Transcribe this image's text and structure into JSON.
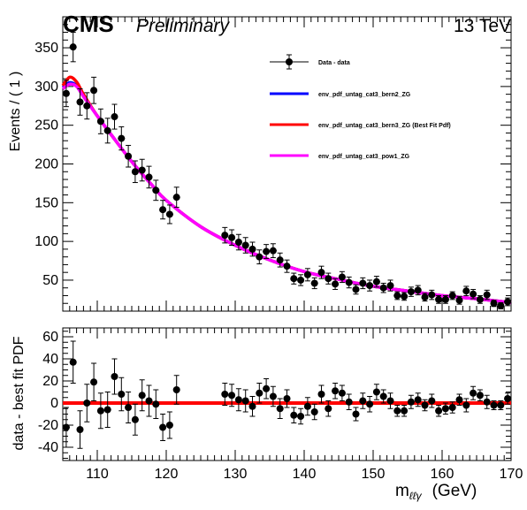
{
  "header": {
    "experiment": "CMS",
    "status": "Preliminary",
    "energy": "13 TeV"
  },
  "chart_data": [
    {
      "type": "scatter",
      "panel": "top",
      "ylabel": "Events / ( 1 )",
      "xlim": [
        105,
        170
      ],
      "ylim": [
        10,
        390
      ],
      "xticks": [
        "110",
        "120",
        "130",
        "140",
        "150",
        "160",
        "170"
      ],
      "yticks": [
        50,
        100,
        150,
        200,
        250,
        300,
        350
      ],
      "legend_position": "top-right",
      "series": [
        {
          "name": "Data - data",
          "kind": "points",
          "color": "#000000",
          "x": [
            105.5,
            106.5,
            107.5,
            108.5,
            109.5,
            110.5,
            111.5,
            112.5,
            113.5,
            114.5,
            115.5,
            116.5,
            117.5,
            118.5,
            119.5,
            120.5,
            121.5,
            128.5,
            129.5,
            130.5,
            131.5,
            132.5,
            133.5,
            134.5,
            135.5,
            136.5,
            137.5,
            138.5,
            139.5,
            140.5,
            141.5,
            142.5,
            143.5,
            144.5,
            145.5,
            146.5,
            147.5,
            148.5,
            149.5,
            150.5,
            151.5,
            152.5,
            153.5,
            154.5,
            155.5,
            156.5,
            157.5,
            158.5,
            159.5,
            160.5,
            161.5,
            162.5,
            163.5,
            164.5,
            165.5,
            166.5,
            167.5,
            168.5,
            169.5
          ],
          "y": [
            291,
            351,
            280,
            275,
            295,
            255,
            243,
            261,
            233,
            210,
            190,
            192,
            183,
            166,
            141,
            135,
            157,
            108,
            105,
            99,
            95,
            90,
            80,
            87,
            88,
            76,
            68,
            52,
            50,
            57,
            46,
            60,
            52,
            45,
            54,
            47,
            38,
            46,
            43,
            48,
            40,
            43,
            30,
            29,
            35,
            37,
            28,
            31,
            25,
            25,
            30,
            24,
            36,
            32,
            25,
            31,
            20,
            17,
            22
          ],
          "yerr": [
            17,
            19,
            17,
            17,
            17,
            16,
            16,
            16,
            15,
            14,
            14,
            14,
            14,
            13,
            12,
            12,
            13,
            10,
            10,
            10,
            10,
            9,
            9,
            9,
            9,
            9,
            8,
            7,
            7,
            8,
            7,
            8,
            7,
            7,
            7,
            7,
            6,
            7,
            7,
            7,
            6,
            7,
            5,
            5,
            6,
            6,
            5,
            6,
            5,
            5,
            5,
            5,
            6,
            6,
            5,
            6,
            4,
            4,
            5
          ]
        },
        {
          "name": "env_pdf_untag_cat3_bern2_ZG",
          "kind": "line",
          "color": "#0000ff",
          "x": [
            105,
            106,
            107,
            108,
            110,
            112,
            115,
            118,
            120,
            125,
            130,
            135,
            140,
            145,
            150,
            155,
            160,
            165,
            170
          ],
          "y": [
            299,
            305,
            301,
            288,
            262,
            238,
            203,
            172,
            153,
            119,
            95,
            76,
            61,
            51,
            42,
            36,
            30,
            26,
            21
          ]
        },
        {
          "name": "env_pdf_untag_cat3_bern3_ZG (Best Fit Pdf)",
          "kind": "line",
          "color": "#ff0000",
          "x": [
            105,
            106,
            107,
            108,
            110,
            112,
            115,
            118,
            120,
            125,
            130,
            135,
            140,
            145,
            150,
            155,
            160,
            165,
            170
          ],
          "y": [
            301,
            312,
            306,
            290,
            262,
            238,
            203,
            172,
            153,
            119,
            95,
            76,
            61,
            51,
            42,
            36,
            30,
            26,
            21
          ]
        },
        {
          "name": "env_pdf_untag_cat3_pow1_ZG",
          "kind": "line",
          "color": "#ff00ff",
          "x": [
            105,
            106,
            107,
            108,
            110,
            112,
            115,
            118,
            120,
            125,
            130,
            135,
            140,
            145,
            150,
            155,
            160,
            165,
            170
          ],
          "y": [
            297,
            303,
            300,
            287,
            262,
            238,
            203,
            172,
            153,
            119,
            95,
            76,
            61,
            51,
            42,
            36,
            30,
            26,
            21
          ]
        }
      ]
    },
    {
      "type": "scatter",
      "panel": "bottom",
      "ylabel": "data - best fit PDF",
      "xlabel": "m",
      "xlabel_subscript": "ℓℓγ",
      "xlabel_unit": "(GeV)",
      "xlim": [
        105,
        170
      ],
      "ylim": [
        -52,
        68
      ],
      "xticks": [
        "110",
        "120",
        "130",
        "140",
        "150",
        "160",
        "170"
      ],
      "yticks": [
        -40,
        -20,
        0,
        20,
        40,
        60
      ],
      "reference_line": {
        "y": 0,
        "color": "#ff0000"
      },
      "series": [
        {
          "name": "data - best fit PDF",
          "kind": "points",
          "color": "#000000",
          "x": [
            105.5,
            106.5,
            107.5,
            108.5,
            109.5,
            110.5,
            111.5,
            112.5,
            113.5,
            114.5,
            115.5,
            116.5,
            117.5,
            118.5,
            119.5,
            120.5,
            121.5,
            128.5,
            129.5,
            130.5,
            131.5,
            132.5,
            133.5,
            134.5,
            135.5,
            136.5,
            137.5,
            138.5,
            139.5,
            140.5,
            141.5,
            142.5,
            143.5,
            144.5,
            145.5,
            146.5,
            147.5,
            148.5,
            149.5,
            150.5,
            151.5,
            152.5,
            153.5,
            154.5,
            155.5,
            156.5,
            157.5,
            158.5,
            159.5,
            160.5,
            161.5,
            162.5,
            163.5,
            164.5,
            165.5,
            166.5,
            167.5,
            168.5,
            169.5
          ],
          "y": [
            -22,
            37,
            -24,
            0,
            19,
            -7,
            -6,
            24,
            8,
            -4,
            -15,
            7,
            2,
            -1,
            -22,
            -20,
            12,
            8,
            7,
            3,
            2,
            -3,
            9,
            13,
            6,
            -5,
            4,
            -11,
            -12,
            -3,
            -8,
            8,
            -5,
            11,
            9,
            1,
            -10,
            2,
            -1,
            10,
            6,
            2,
            -7,
            -7,
            1,
            3,
            -2,
            2,
            -7,
            -5,
            -4,
            3,
            -2,
            9,
            7,
            1,
            -2,
            -2,
            4
          ],
          "yerr": [
            18,
            19,
            17,
            17,
            17,
            16,
            16,
            16,
            15,
            14,
            14,
            14,
            14,
            13,
            12,
            12,
            13,
            10,
            10,
            10,
            10,
            9,
            9,
            9,
            9,
            9,
            8,
            7,
            7,
            8,
            7,
            8,
            7,
            7,
            7,
            7,
            6,
            7,
            7,
            7,
            6,
            7,
            5,
            5,
            6,
            6,
            5,
            6,
            5,
            5,
            5,
            5,
            6,
            6,
            5,
            6,
            4,
            4,
            5
          ]
        }
      ]
    }
  ]
}
